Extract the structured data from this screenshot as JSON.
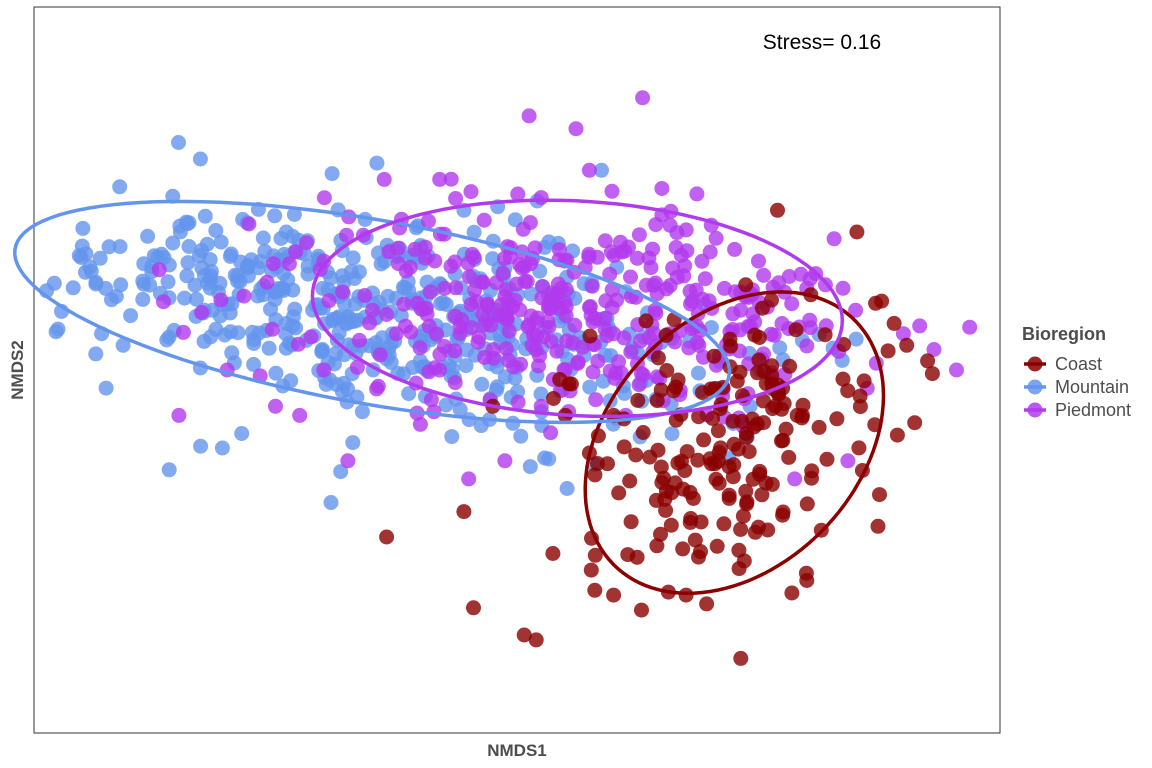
{
  "chart_data": {
    "type": "scatter",
    "title": "",
    "xlabel": "NMDS1",
    "ylabel": "NMDS2",
    "xlim": [
      -2.0,
      2.0
    ],
    "ylim": [
      -2.0,
      2.0
    ],
    "grid": false,
    "annotation": "Stress= 0.16",
    "legend": {
      "title": "Bioregion",
      "placement": "right"
    },
    "series": [
      {
        "name": "Coast",
        "color": "#8b0000",
        "ellipse": {
          "cx": 0.9,
          "cy": -0.4,
          "rx": 0.56,
          "ry": 0.87,
          "angle": -23
        },
        "points": [
          [
            -0.54,
            -0.92
          ],
          [
            0.03,
            -1.46
          ],
          [
            -0.18,
            -1.31
          ],
          [
            -0.22,
            -0.78
          ],
          [
            -0.1,
            -0.2
          ],
          [
            0.4,
            -1.24
          ],
          [
            0.6,
            -0.62
          ],
          [
            1.1,
            -0.8
          ],
          [
            1.35,
            -0.05
          ],
          [
            1.7,
            0.05
          ],
          [
            1.72,
            -0.02
          ],
          [
            1.2,
            -1.16
          ],
          [
            0.7,
            -1.24
          ],
          [
            0.76,
            -1.0
          ],
          [
            0.55,
            -0.48
          ],
          [
            0.95,
            -0.35
          ],
          [
            0.2,
            -0.25
          ],
          [
            0.4,
            -0.25
          ],
          [
            1.1,
            -0.1
          ]
        ]
      },
      {
        "name": "Mountain",
        "color": "#6495ed",
        "ellipse": {
          "cx": -0.6,
          "cy": 0.32,
          "rx": 1.52,
          "ry": 0.5,
          "angle": -14
        },
        "points": [
          [
            -1.44,
            -0.55
          ],
          [
            -1.31,
            -0.42
          ],
          [
            -1.22,
            -0.43
          ],
          [
            -1.14,
            -0.35
          ],
          [
            -0.73,
            -0.56
          ],
          [
            -0.68,
            -0.4
          ],
          [
            -0.64,
            -0.23
          ],
          [
            -0.77,
            -0.73
          ],
          [
            -0.58,
            1.14
          ],
          [
            -0.22,
            0.88
          ],
          [
            0.35,
            1.1
          ],
          [
            -0.08,
            0.9
          ],
          [
            -1.72,
            0.2
          ],
          [
            -1.6,
            0.3
          ]
        ]
      },
      {
        "name": "Piedmont",
        "color": "#b23aee",
        "ellipse": {
          "cx": 0.25,
          "cy": 0.34,
          "rx": 1.1,
          "ry": 0.59,
          "angle": -5
        },
        "points": [
          [
            0.4,
            0.2
          ],
          [
            0.5,
            0.25
          ],
          [
            0.6,
            1.0
          ],
          [
            0.52,
            1.5
          ],
          [
            0.05,
            1.4
          ],
          [
            0.3,
            1.1
          ],
          [
            0.8,
            0.65
          ],
          [
            1.0,
            0.6
          ],
          [
            1.2,
            0.45
          ],
          [
            1.35,
            0.45
          ],
          [
            1.6,
            0.2
          ],
          [
            1.82,
            0.0
          ],
          [
            1.45,
            -0.1
          ],
          [
            1.37,
            -0.5
          ],
          [
            1.15,
            -0.6
          ],
          [
            0.45,
            -0.25
          ],
          [
            0.1,
            -0.2
          ],
          [
            -0.05,
            -0.5
          ],
          [
            -0.2,
            -0.6
          ],
          [
            -0.4,
            -0.3
          ],
          [
            -0.7,
            -0.5
          ],
          [
            -0.9,
            -0.25
          ],
          [
            -1.0,
            -0.2
          ],
          [
            -1.4,
            -0.25
          ],
          [
            -1.2,
            0.0
          ],
          [
            -0.8,
            0.0
          ],
          [
            -0.5,
            0.2
          ],
          [
            -0.3,
            0.45
          ],
          [
            -0.8,
            0.6
          ],
          [
            0.1,
            0.95
          ],
          [
            -0.55,
            1.05
          ],
          [
            -0.32,
            1.05
          ]
        ]
      }
    ]
  }
}
